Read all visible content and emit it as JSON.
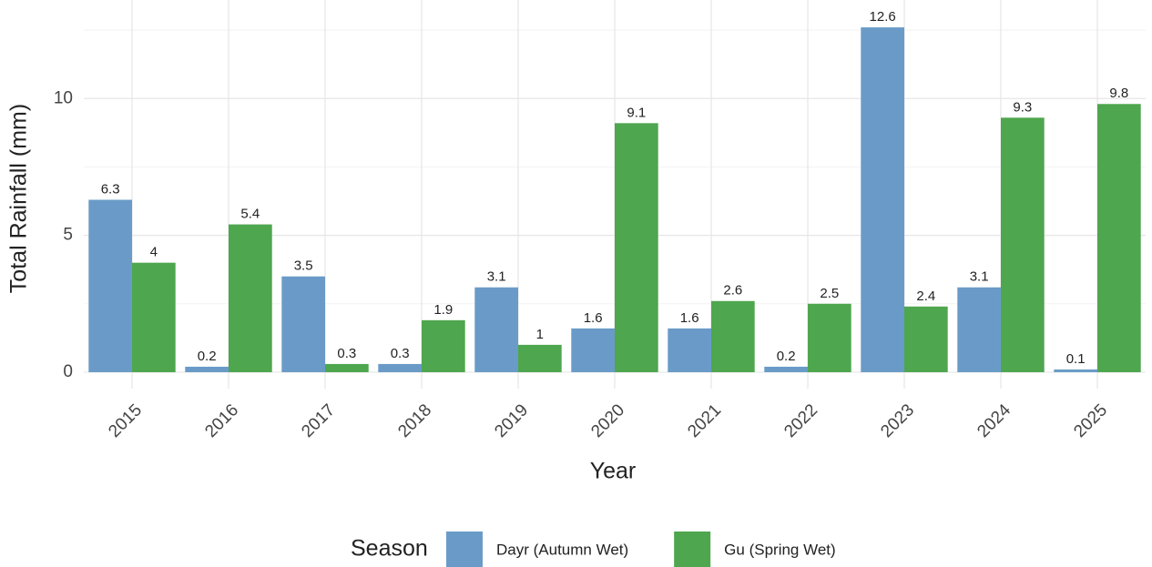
{
  "chart_data": {
    "type": "bar",
    "x_label": "Year",
    "y_label": "Total Rainfall (mm)",
    "legend_title": "Season",
    "categories": [
      "2015",
      "2016",
      "2017",
      "2018",
      "2019",
      "2020",
      "2021",
      "2022",
      "2023",
      "2024",
      "2025"
    ],
    "series": [
      {
        "name": "Dayr (Autumn Wet)",
        "color": "#6a9bc8",
        "values": [
          6.3,
          0.2,
          3.5,
          0.3,
          3.1,
          1.6,
          1.6,
          0.2,
          12.6,
          3.1,
          0.1
        ]
      },
      {
        "name": "Gu (Spring Wet)",
        "color": "#4ea64e",
        "values": [
          4,
          5.4,
          0.3,
          1.9,
          1,
          9.1,
          2.6,
          2.5,
          2.4,
          9.3,
          9.8
        ]
      }
    ],
    "ylim": [
      -0.6,
      13.6
    ],
    "yticks": [
      0,
      5,
      10
    ],
    "minor_yticks": [
      2.5,
      7.5,
      12.5
    ],
    "grid": true,
    "legend": "bottom"
  }
}
